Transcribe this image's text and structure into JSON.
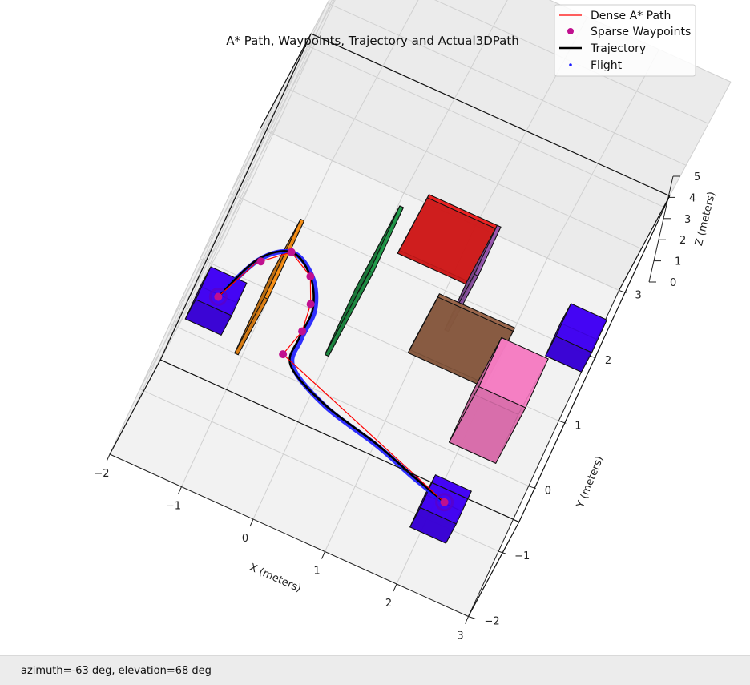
{
  "status_bar": {
    "text": "azimuth=-63 deg, elevation=68 deg"
  },
  "chart_data": {
    "type": "line",
    "title": "A* Path, Waypoints, Trajectory and Actual3DPath",
    "xlabel": "X (meters)",
    "ylabel": "Y (meters)",
    "zlabel": "Z (meters)",
    "xlim": [
      -2,
      3
    ],
    "ylim": [
      -2,
      3
    ],
    "zlim": [
      0,
      5
    ],
    "x_ticks": [
      "−2",
      "−1",
      "0",
      "1",
      "2",
      "3"
    ],
    "y_ticks": [
      "−2",
      "−1",
      "0",
      "1",
      "2",
      "3"
    ],
    "z_ticks": [
      "0",
      "1",
      "2",
      "3",
      "4",
      "5"
    ],
    "view": {
      "azimuth_deg": -63,
      "elevation_deg": 68
    },
    "grid": true,
    "legend": {
      "position": "top-right",
      "entries": [
        {
          "label": "Dense A* Path",
          "color": "#ff0000",
          "marker": "line-thin"
        },
        {
          "label": "Sparse Waypoints",
          "color": "#c0108f",
          "marker": "dot"
        },
        {
          "label": "Trajectory",
          "color": "#000000",
          "marker": "line-thick"
        },
        {
          "label": "Flight",
          "color": "#1a1aff",
          "marker": "small-dot"
        }
      ]
    },
    "series": [
      {
        "name": "Dense A* Path",
        "color": "#ff0000",
        "points": [
          [
            -1.6,
            0.4,
            0.25
          ],
          [
            -1.35,
            1.0,
            0.3
          ],
          [
            -1.0,
            1.3,
            0.35
          ],
          [
            -0.65,
            1.1,
            0.35
          ],
          [
            -0.5,
            0.75,
            0.35
          ],
          [
            -0.45,
            0.4,
            0.3
          ],
          [
            -0.55,
            0.0,
            0.3
          ],
          [
            2.1,
            -0.95,
            0.3
          ]
        ]
      },
      {
        "name": "Sparse Waypoints",
        "color": "#c0108f",
        "points": [
          [
            -1.6,
            0.4,
            0.25
          ],
          [
            -1.3,
            1.05,
            0.3
          ],
          [
            -1.0,
            1.3,
            0.35
          ],
          [
            -0.65,
            1.1,
            0.35
          ],
          [
            -0.5,
            0.75,
            0.35
          ],
          [
            -0.45,
            0.4,
            0.3
          ],
          [
            -0.55,
            0.0,
            0.3
          ],
          [
            2.1,
            -0.95,
            0.3
          ]
        ]
      },
      {
        "name": "Trajectory",
        "color": "#000000",
        "points": [
          [
            -1.6,
            0.4,
            0.25
          ],
          [
            -1.35,
            1.05,
            0.3
          ],
          [
            -1.0,
            1.3,
            0.35
          ],
          [
            -0.65,
            1.1,
            0.35
          ],
          [
            -0.45,
            0.7,
            0.35
          ],
          [
            -0.45,
            0.3,
            0.3
          ],
          [
            -0.4,
            -0.1,
            0.3
          ],
          [
            0.2,
            -0.4,
            0.3
          ],
          [
            1.0,
            -0.6,
            0.3
          ],
          [
            1.6,
            -0.8,
            0.3
          ],
          [
            2.1,
            -0.95,
            0.3
          ]
        ]
      },
      {
        "name": "Flight",
        "color": "#1a1aff",
        "points": [
          [
            -1.6,
            0.4,
            0.25
          ],
          [
            -1.33,
            1.06,
            0.3
          ],
          [
            -0.98,
            1.3,
            0.35
          ],
          [
            -0.62,
            1.1,
            0.35
          ],
          [
            -0.42,
            0.7,
            0.35
          ],
          [
            -0.42,
            0.3,
            0.3
          ],
          [
            -0.37,
            -0.1,
            0.3
          ],
          [
            0.22,
            -0.42,
            0.3
          ],
          [
            1.02,
            -0.62,
            0.3
          ],
          [
            1.62,
            -0.82,
            0.3
          ],
          [
            2.1,
            -0.95,
            0.3
          ]
        ]
      }
    ],
    "obstacles": [
      {
        "name": "start-pad",
        "color": "#3a00dd",
        "min": [
          -1.85,
          0.15,
          0.0
        ],
        "max": [
          -1.35,
          0.65,
          0.35
        ]
      },
      {
        "name": "goal-pad",
        "color": "#3a00dd",
        "min": [
          1.85,
          -1.2,
          0.0
        ],
        "max": [
          2.35,
          -0.7,
          0.35
        ]
      },
      {
        "name": "blue-box-top-right",
        "color": "#3a00dd",
        "min": [
          2.5,
          1.75,
          0.0
        ],
        "max": [
          3.0,
          2.25,
          0.35
        ]
      },
      {
        "name": "orange-wall",
        "color": "#e07f10",
        "min": [
          -1.1,
          0.0,
          0.0
        ],
        "max": [
          -1.05,
          1.2,
          1.0
        ]
      },
      {
        "name": "green-wall",
        "color": "#1a8a40",
        "min": [
          -0.05,
          0.5,
          0.0
        ],
        "max": [
          0.0,
          1.5,
          1.5
        ]
      },
      {
        "name": "red-wall",
        "color": "#d41a1a",
        "min": [
          0.25,
          2.2,
          0.0
        ],
        "max": [
          1.25,
          2.25,
          1.0
        ]
      },
      {
        "name": "purple-wall",
        "color": "#8a50a0",
        "min": [
          1.2,
          1.5,
          0.0
        ],
        "max": [
          1.25,
          2.25,
          1.0
        ]
      },
      {
        "name": "brown-wall",
        "color": "#8a5a40",
        "min": [
          0.9,
          1.0,
          0.0
        ],
        "max": [
          1.95,
          1.05,
          1.0
        ]
      },
      {
        "name": "pink-box",
        "color": "#e070b0",
        "min": [
          1.85,
          0.1,
          0.0
        ],
        "max": [
          2.5,
          0.85,
          1.0
        ]
      }
    ]
  }
}
